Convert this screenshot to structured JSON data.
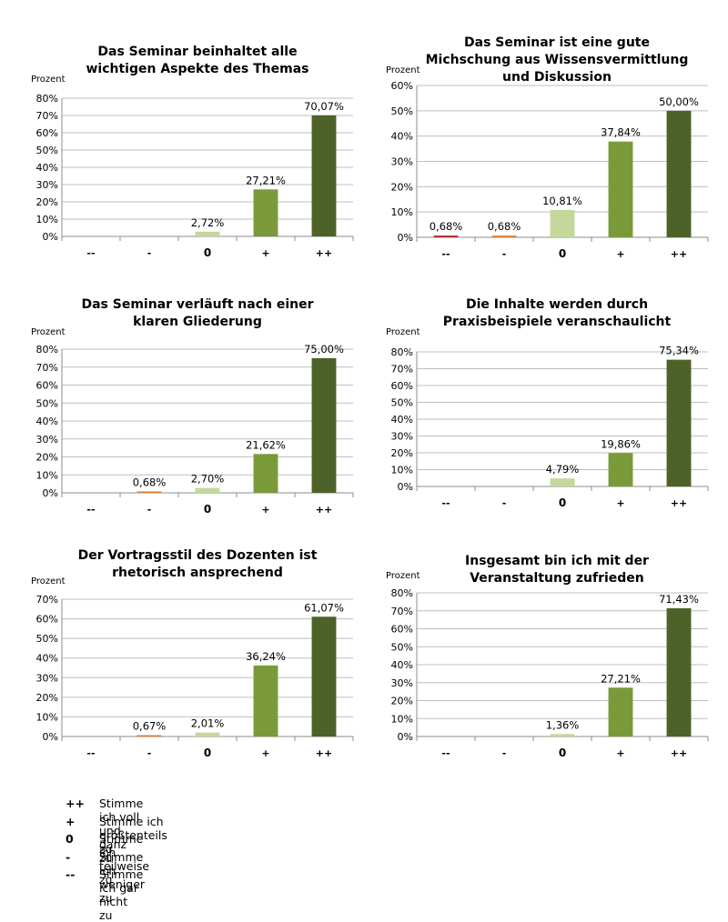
{
  "colors": {
    "--": "#b22a2a",
    "-": "#e07e2e",
    "0": "#c3d89a",
    "+": "#7a9a3a",
    "++": "#4d6229",
    "grid": "#bfbfbf",
    "axis": "#8c8c8c"
  },
  "chart_data": [
    {
      "type": "bar",
      "title": "Das Seminar beinhaltet alle wichtigen Aspekte des Themas",
      "ylabel": "Prozent",
      "categories": [
        "--",
        "-",
        "0",
        "+",
        "++"
      ],
      "values": [
        null,
        null,
        2.72,
        27.21,
        70.07
      ],
      "value_labels": [
        "",
        "",
        "2,72%",
        "27,21%",
        "70,07%"
      ],
      "ylim": [
        0,
        80
      ],
      "yticks": [
        "0%",
        "10%",
        "20%",
        "30%",
        "40%",
        "50%",
        "60%",
        "70%",
        "80%"
      ],
      "grid": true
    },
    {
      "type": "bar",
      "title": "Das Seminar ist eine gute Michschung aus Wissensvermittlung und Diskussion",
      "ylabel": "Prozent",
      "categories": [
        "--",
        "-",
        "0",
        "+",
        "++"
      ],
      "values": [
        0.68,
        0.68,
        10.81,
        37.84,
        50.0
      ],
      "value_labels": [
        "0,68%",
        "0,68%",
        "10,81%",
        "37,84%",
        "50,00%"
      ],
      "ylim": [
        0,
        60
      ],
      "yticks": [
        "0%",
        "10%",
        "20%",
        "30%",
        "40%",
        "50%",
        "60%"
      ],
      "grid": true
    },
    {
      "type": "bar",
      "title": "Das Seminar verläuft nach einer klaren Gliederung",
      "ylabel": "Prozent",
      "categories": [
        "--",
        "-",
        "0",
        "+",
        "++"
      ],
      "values": [
        null,
        0.68,
        2.7,
        21.62,
        75.0
      ],
      "value_labels": [
        "",
        "0,68%",
        "2,70%",
        "21,62%",
        "75,00%"
      ],
      "ylim": [
        0,
        80
      ],
      "yticks": [
        "0%",
        "10%",
        "20%",
        "30%",
        "40%",
        "50%",
        "60%",
        "70%",
        "80%"
      ],
      "grid": true
    },
    {
      "type": "bar",
      "title": "Die Inhalte werden durch Praxisbeispiele veranschaulicht",
      "ylabel": "Prozent",
      "categories": [
        "--",
        "-",
        "0",
        "+",
        "++"
      ],
      "values": [
        null,
        null,
        4.79,
        19.86,
        75.34
      ],
      "value_labels": [
        "",
        "",
        "4,79%",
        "19,86%",
        "75,34%"
      ],
      "ylim": [
        0,
        80
      ],
      "yticks": [
        "0%",
        "10%",
        "20%",
        "30%",
        "40%",
        "50%",
        "60%",
        "70%",
        "80%"
      ],
      "grid": true
    },
    {
      "type": "bar",
      "title": "Der Vortragsstil des Dozenten ist rhetorisch ansprechend",
      "ylabel": "Prozent",
      "categories": [
        "--",
        "-",
        "0",
        "+",
        "++"
      ],
      "values": [
        null,
        0.67,
        2.01,
        36.24,
        61.07
      ],
      "value_labels": [
        "",
        "0,67%",
        "2,01%",
        "36,24%",
        "61,07%"
      ],
      "ylim": [
        0,
        70
      ],
      "yticks": [
        "0%",
        "10%",
        "20%",
        "30%",
        "40%",
        "50%",
        "60%",
        "70%"
      ],
      "grid": true
    },
    {
      "type": "bar",
      "title": "Insgesamt bin ich mit der Veranstaltung zufrieden",
      "ylabel": "Prozent",
      "categories": [
        "--",
        "-",
        "0",
        "+",
        "++"
      ],
      "values": [
        null,
        null,
        1.36,
        27.21,
        71.43
      ],
      "value_labels": [
        "",
        "",
        "1,36%",
        "27,21%",
        "71,43%"
      ],
      "ylim": [
        0,
        80
      ],
      "yticks": [
        "0%",
        "10%",
        "20%",
        "30%",
        "40%",
        "50%",
        "60%",
        "70%",
        "80%"
      ],
      "grid": true
    }
  ],
  "legend": [
    {
      "symbol": "++",
      "text": "Stimme ich voll und ganz zu"
    },
    {
      "symbol": "+",
      "text": "Stimme ich größtenteils zu"
    },
    {
      "symbol": "0",
      "text": "Stimme ich teilweise zu"
    },
    {
      "symbol": "-",
      "text": "Stimme ich weniger zu"
    },
    {
      "symbol": "--",
      "text": "Stimme ich gar nicht zu"
    }
  ]
}
